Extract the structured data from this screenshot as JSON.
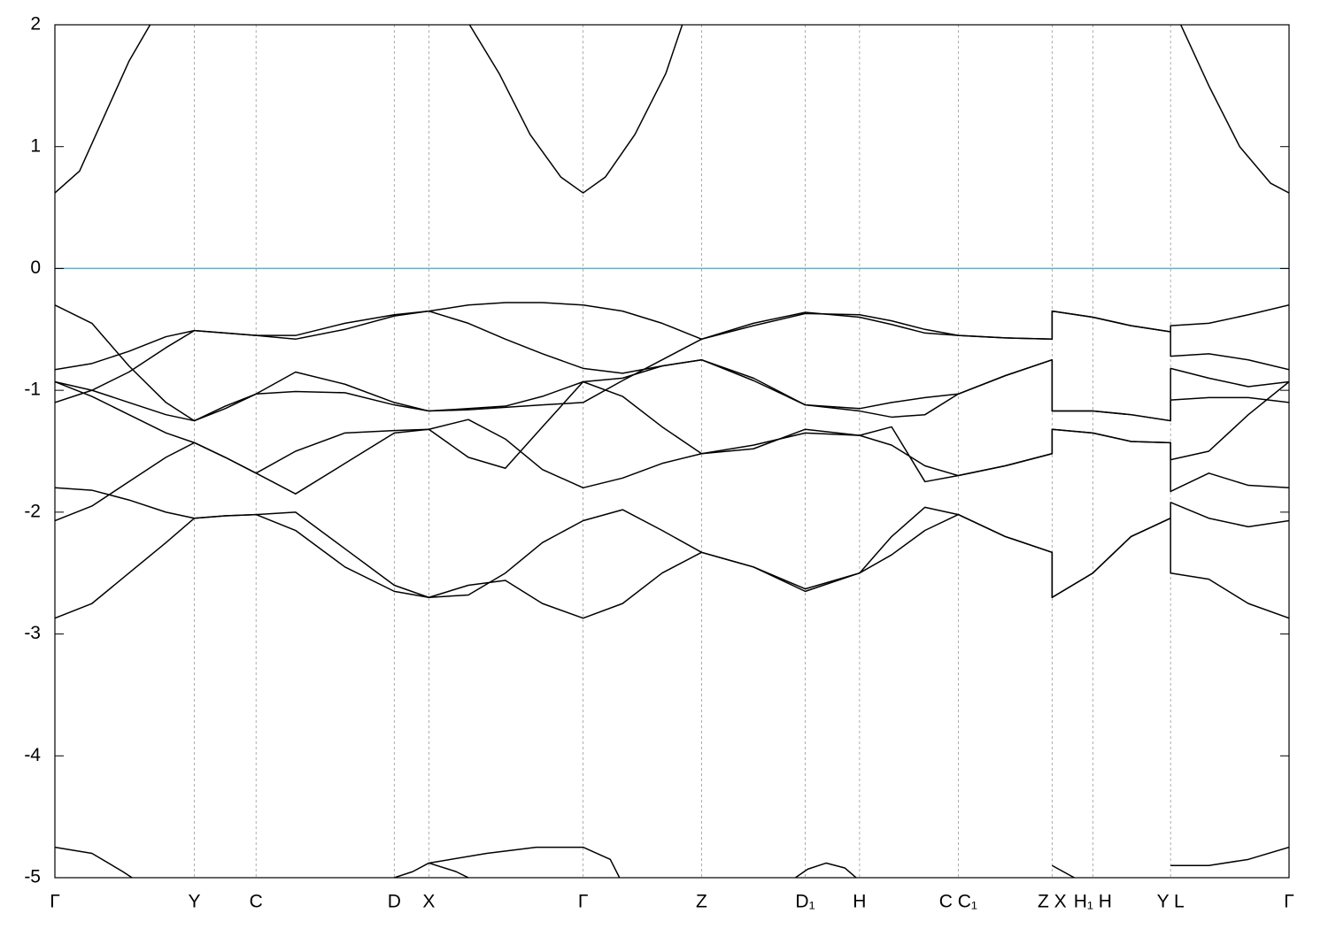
{
  "chart_data": {
    "type": "line",
    "xlim": [
      0,
      1
    ],
    "ylim": [
      -5,
      2
    ],
    "yticks": [
      -5,
      -4,
      -3,
      -2,
      -1,
      0,
      1,
      2
    ],
    "xticks": [
      {
        "value": 0,
        "label": "Γ"
      },
      {
        "value": 0.113,
        "label": "Y"
      },
      {
        "value": 0.163,
        "label": "C"
      },
      {
        "value": 0.275,
        "label": "D"
      },
      {
        "value": 0.303,
        "label": "X"
      },
      {
        "value": 0.428,
        "label": "Γ"
      },
      {
        "value": 0.524,
        "label": "Z"
      },
      {
        "value": 0.608,
        "label": "D₁"
      },
      {
        "value": 0.652,
        "label": "H"
      },
      {
        "value": 0.732,
        "label": "C C₁"
      },
      {
        "value": 0.808,
        "label": "Z X"
      },
      {
        "value": 0.841,
        "label": "H₁ H"
      },
      {
        "value": 0.904,
        "label": "Y L"
      },
      {
        "value": 1,
        "label": "Γ"
      }
    ],
    "grid": true,
    "fermi_level": 0,
    "fermi_color": "#5ab4c8",
    "x": [
      0,
      0.03,
      0.06,
      0.09,
      0.113,
      0.138,
      0.163,
      0.195,
      0.235,
      0.275,
      0.303,
      0.335,
      0.365,
      0.395,
      0.428,
      0.46,
      0.492,
      0.524,
      0.566,
      0.608,
      0.652,
      0.678,
      0.705,
      0.732,
      0.77,
      0.808,
      0.808,
      0.841,
      0.872,
      0.904,
      0.904,
      0.935,
      0.967,
      1
    ],
    "series": [
      {
        "color": "#000000",
        "values": [
          -0.3,
          -0.45,
          -0.8,
          -1.1,
          -1.25,
          -1.15,
          -1.03,
          -0.85,
          -0.95,
          -1.1,
          -1.17,
          -1.15,
          -1.13,
          -1.05,
          -0.93,
          -0.9,
          -0.8,
          -0.75,
          -0.9,
          -1.12,
          -1.17,
          -1.22,
          -1.2,
          -1.03,
          -0.88,
          -0.75,
          -1.17,
          -1.17,
          -1.2,
          -1.25,
          -1.08,
          -1.06,
          -1.06,
          -1.1
        ]
      },
      {
        "color": "#000000",
        "values": [
          -0.83,
          -0.78,
          -0.68,
          -0.56,
          -0.51,
          -0.53,
          -0.55,
          -0.58,
          -0.5,
          -0.39,
          -0.35,
          -0.45,
          -0.58,
          -0.7,
          -0.82,
          -0.86,
          -0.8,
          -0.75,
          -0.92,
          -1.12,
          -1.15,
          -1.1,
          -1.06,
          -1.03,
          -0.88,
          -0.75,
          -1.17,
          -1.17,
          -1.2,
          -1.25,
          -0.82,
          -0.9,
          -0.97,
          -0.93
        ]
      },
      {
        "color": "#000000",
        "values": [
          -1.1,
          -1.0,
          -0.85,
          -0.65,
          -0.51,
          -0.53,
          -0.55,
          -0.55,
          -0.45,
          -0.38,
          -0.35,
          -0.3,
          -0.28,
          -0.28,
          -0.3,
          -0.35,
          -0.45,
          -0.58,
          -0.47,
          -0.37,
          -0.38,
          -0.43,
          -0.5,
          -0.55,
          -0.57,
          -0.58,
          -0.35,
          -0.4,
          -0.47,
          -0.52,
          -0.47,
          -0.45,
          -0.38,
          -0.3
        ]
      },
      {
        "color": "#000000",
        "values": [
          -0.93,
          -1.0,
          -1.1,
          -1.2,
          -1.25,
          -1.13,
          -1.03,
          -1.01,
          -1.02,
          -1.12,
          -1.17,
          -1.16,
          -1.14,
          -1.12,
          -1.1,
          -0.92,
          -0.75,
          -0.58,
          -0.45,
          -0.36,
          -0.4,
          -0.46,
          -0.53,
          -0.55,
          -0.57,
          -0.58,
          -0.35,
          -0.4,
          -0.47,
          -0.52,
          -0.72,
          -0.7,
          -0.75,
          -0.83
        ]
      },
      {
        "color": "#000000",
        "values": [
          -0.93,
          -1.05,
          -1.2,
          -1.35,
          -1.43,
          -1.55,
          -1.68,
          -1.85,
          -1.6,
          -1.35,
          -1.32,
          -1.24,
          -1.4,
          -1.65,
          -1.8,
          -1.72,
          -1.6,
          -1.52,
          -1.45,
          -1.35,
          -1.37,
          -1.45,
          -1.62,
          -1.7,
          -1.62,
          -1.52,
          -1.32,
          -1.35,
          -1.42,
          -1.43,
          -1.57,
          -1.5,
          -1.2,
          -0.93
        ]
      },
      {
        "color": "#000000",
        "values": [
          -2.07,
          -1.95,
          -1.75,
          -1.55,
          -1.43,
          -1.55,
          -1.68,
          -1.5,
          -1.35,
          -1.33,
          -1.32,
          -1.55,
          -1.64,
          -1.3,
          -0.93,
          -1.05,
          -1.3,
          -1.52,
          -1.48,
          -1.32,
          -1.37,
          -1.3,
          -1.75,
          -1.7,
          -1.62,
          -1.52,
          -1.32,
          -1.35,
          -1.42,
          -1.43,
          -1.83,
          -1.68,
          -1.78,
          -1.8
        ]
      },
      {
        "color": "#000000",
        "values": [
          -1.8,
          -1.82,
          -1.9,
          -2.0,
          -2.05,
          -2.03,
          -2.02,
          -2.0,
          -2.3,
          -2.6,
          -2.7,
          -2.6,
          -2.56,
          -2.75,
          -2.87,
          -2.75,
          -2.5,
          -2.33,
          -2.45,
          -2.63,
          -2.5,
          -2.2,
          -1.96,
          -2.02,
          -2.2,
          -2.33,
          -2.7,
          -2.5,
          -2.2,
          -2.05,
          -1.92,
          -2.05,
          -2.12,
          -2.07
        ]
      },
      {
        "color": "#000000",
        "values": [
          -2.87,
          -2.75,
          -2.5,
          -2.25,
          -2.05,
          -2.03,
          -2.02,
          -2.15,
          -2.45,
          -2.65,
          -2.7,
          -2.68,
          -2.5,
          -2.25,
          -2.07,
          -1.98,
          -2.15,
          -2.33,
          -2.45,
          -2.65,
          -2.5,
          -2.35,
          -2.15,
          -2.02,
          -2.2,
          -2.33,
          -2.7,
          -2.5,
          -2.2,
          -2.05,
          -2.5,
          -2.55,
          -2.75,
          -2.87
        ]
      },
      {
        "color": "#000000",
        "x": [
          0,
          0.02,
          0.04,
          0.06,
          0.08,
          0.2,
          0.333,
          0.36,
          0.385,
          0.41,
          0.428,
          0.446,
          0.47,
          0.495,
          0.51,
          0.8,
          0.91,
          0.935,
          0.96,
          0.985,
          1
        ],
        "values": [
          0.62,
          0.8,
          1.25,
          1.7,
          2.05,
          null,
          2.05,
          1.6,
          1.1,
          0.75,
          0.62,
          0.75,
          1.1,
          1.6,
          2.05,
          null,
          2.05,
          1.5,
          1.0,
          0.7,
          0.62
        ]
      },
      {
        "color": "#000000",
        "x": [
          0,
          0.03,
          0.055,
          0.07,
          0.15,
          0.26,
          0.29,
          0.303,
          0.35,
          0.39,
          0.428,
          0.45,
          0.46,
          0.48,
          0.303,
          0.325,
          0.345,
          0.5,
          0.6,
          0.61,
          0.625,
          0.64,
          0.655,
          0.7,
          0.808,
          0.826,
          0.835,
          0.87,
          0.904,
          0.935,
          0.967,
          1
        ],
        "values": [
          -4.75,
          -4.8,
          -4.95,
          -5.05,
          null,
          -5.05,
          -4.95,
          -4.88,
          -4.8,
          -4.75,
          -4.75,
          -4.85,
          -5.05,
          null,
          -4.88,
          -4.95,
          -5.05,
          null,
          -5.0,
          -4.93,
          -4.88,
          -4.92,
          -5.05,
          null,
          -4.9,
          -5.0,
          -5.05,
          null,
          -4.9,
          -4.9,
          -4.85,
          -4.75
        ]
      }
    ]
  }
}
